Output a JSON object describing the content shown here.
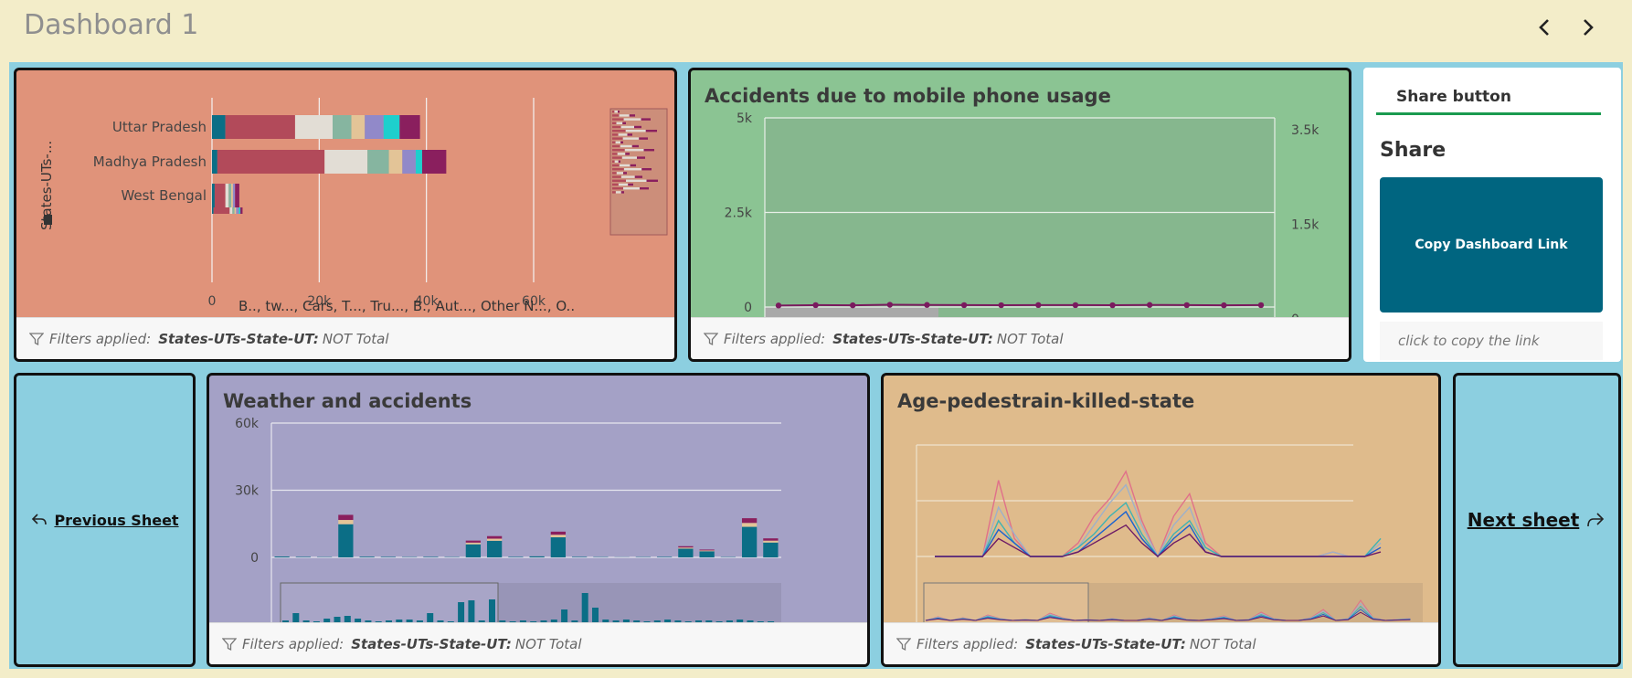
{
  "header": {
    "title": "Dashboard 1",
    "prev_icon": "chevron-left-icon",
    "next_icon": "chevron-right-icon"
  },
  "filters": {
    "prefix": "Filters applied:",
    "key": "States-UTs-State-UT:",
    "value": "NOT Total"
  },
  "colors": {
    "background": "#f3edc9",
    "canvas": "#8ccfe0",
    "accent": "#006580",
    "series": [
      "#0b6e86",
      "#b24a5a",
      "#e2ddd5",
      "#86b5a0",
      "#e3c497",
      "#9189c9",
      "#1ecfcd",
      "#8a1f5e"
    ]
  },
  "state_chart": {
    "axis_label": "States-UTs-...",
    "legend_text": "B.., tw..., Cars, T..., Tru..., B., Aut..., Other N..., O..",
    "chart_data": {
      "type": "bar",
      "orientation": "horizontal",
      "stacked": true,
      "categories": [
        "Uttar Pradesh",
        "Madhya Pradesh",
        "West Bengal",
        ""
      ],
      "xticks": [
        "0",
        "20k",
        "40k",
        "60k"
      ],
      "xlim": [
        0,
        70000
      ],
      "series_values": [
        [
          2500,
          1000,
          500,
          300
        ],
        [
          13000,
          20000,
          2000,
          3000
        ],
        [
          7000,
          8000,
          600,
          500
        ],
        [
          3500,
          4000,
          500,
          400
        ],
        [
          2500,
          2500,
          300,
          300
        ],
        [
          3500,
          2500,
          400,
          500
        ],
        [
          3000,
          1200,
          0,
          300
        ],
        [
          3800,
          4500,
          800,
          400
        ]
      ]
    }
  },
  "mobile_chart": {
    "title": "Accidents due to mobile phone usage",
    "chart_data": {
      "type": "line",
      "left_ticks": [
        "5k",
        "2.5k",
        "0"
      ],
      "right_ticks": [
        "3.5k",
        "1.5k",
        "0"
      ],
      "ylim_left": [
        0,
        5000
      ],
      "ylim_right": [
        0,
        3500
      ],
      "values": [
        40,
        50,
        45,
        60,
        55,
        50,
        48,
        52,
        50,
        47,
        55,
        50,
        45,
        50
      ]
    }
  },
  "share": {
    "tab_label": "Share button",
    "heading": "Share",
    "button_label": "Copy Dashboard Link",
    "note": "click to copy the link"
  },
  "nav": {
    "previous_label": "Previous Sheet",
    "next_label": "Next sheet"
  },
  "weather_chart": {
    "title": "Weather and accidents",
    "chart_data": {
      "type": "bar",
      "stacked": true,
      "yticks": [
        "60k",
        "30k",
        "0"
      ],
      "ylim": [
        0,
        60000
      ],
      "totals": [
        500,
        300,
        200,
        19000,
        400,
        300,
        200,
        300,
        200,
        7500,
        9500,
        300,
        600,
        11500,
        300,
        200,
        100,
        200,
        300,
        5000,
        3500,
        200,
        17500,
        8500
      ]
    }
  },
  "age_chart": {
    "title": "Age-pedestrain-killed-state",
    "chart_data": {
      "type": "line",
      "series": [
        {
          "values": [
            0,
            0,
            0,
            0,
            17,
            4,
            0,
            0,
            0,
            3,
            9,
            13,
            19,
            8,
            0,
            9,
            14,
            3,
            0,
            0,
            0,
            0,
            0,
            0,
            0,
            1,
            0,
            0,
            2
          ]
        },
        {
          "values": [
            0,
            0,
            0,
            0,
            11,
            5,
            0,
            0,
            0,
            2,
            7,
            12,
            16,
            7,
            0,
            7,
            11,
            2,
            0,
            0,
            0,
            0,
            0,
            0,
            0,
            1,
            0,
            0,
            3
          ]
        },
        {
          "values": [
            0,
            0,
            0,
            0,
            8,
            3,
            0,
            0,
            0,
            2,
            5,
            9,
            12,
            5,
            0,
            5,
            8,
            2,
            0,
            0,
            0,
            0,
            0,
            0,
            0,
            0,
            0,
            0,
            4
          ]
        },
        {
          "values": [
            0,
            0,
            0,
            0,
            6,
            3,
            0,
            0,
            0,
            1,
            4,
            7,
            10,
            4,
            0,
            4,
            7,
            1,
            0,
            0,
            0,
            0,
            0,
            0,
            0,
            0,
            0,
            0,
            2
          ]
        },
        {
          "values": [
            0,
            0,
            0,
            0,
            4,
            2,
            0,
            0,
            0,
            1,
            3,
            5,
            7,
            3,
            0,
            3,
            5,
            1,
            0,
            0,
            0,
            0,
            0,
            0,
            0,
            0,
            0,
            0,
            1
          ]
        }
      ],
      "colors": [
        "#e0708a",
        "#9fb1c9",
        "#3fb3b3",
        "#1b63d0",
        "#6d1a66"
      ]
    }
  }
}
